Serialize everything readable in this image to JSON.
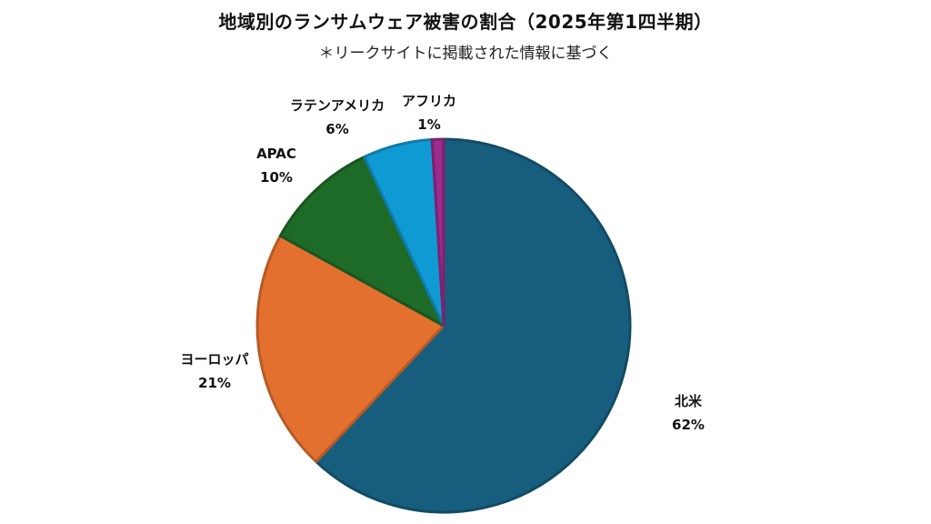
{
  "chart_data": {
    "type": "pie",
    "title": "地域別のランサムウェア被害の割合（2025年第1四半期）",
    "subtitle": "＊リークサイトに掲載された情報に基づく",
    "slices": [
      {
        "label": "北米",
        "value": 62,
        "value_label": "62%",
        "color": "#175e7e"
      },
      {
        "label": "ヨーロッパ",
        "value": 21,
        "value_label": "21%",
        "color": "#e47030"
      },
      {
        "label": "APAC",
        "value": 10,
        "value_label": "10%",
        "color": "#1e6b28"
      },
      {
        "label": "ラテンアメリカ",
        "value": 6,
        "value_label": "6%",
        "color": "#109ad4"
      },
      {
        "label": "アフリカ",
        "value": 1,
        "value_label": "1%",
        "color": "#9b2b8c"
      }
    ],
    "start_direction": "top",
    "legend": "none"
  }
}
